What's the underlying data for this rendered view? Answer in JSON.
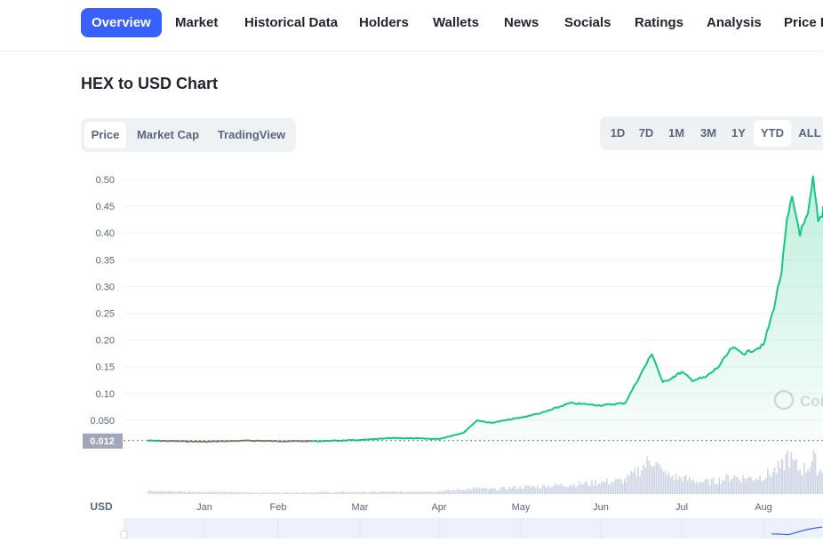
{
  "nav": {
    "items": [
      {
        "label": "Overview",
        "active": true
      },
      {
        "label": "Market"
      },
      {
        "label": "Historical Data"
      },
      {
        "label": "Holders"
      },
      {
        "label": "Wallets"
      },
      {
        "label": "News"
      },
      {
        "label": "Socials"
      },
      {
        "label": "Ratings"
      },
      {
        "label": "Analysis"
      },
      {
        "label": "Price E"
      }
    ]
  },
  "chart_title": "HEX to USD Chart",
  "chart_tabs": [
    {
      "label": "Price",
      "active": true
    },
    {
      "label": "Market Cap"
    },
    {
      "label": "TradingView"
    }
  ],
  "range_tabs": [
    {
      "label": "1D"
    },
    {
      "label": "7D"
    },
    {
      "label": "1M"
    },
    {
      "label": "3M"
    },
    {
      "label": "1Y"
    },
    {
      "label": "YTD",
      "active": true
    },
    {
      "label": "ALL"
    }
  ],
  "currency_label": "USD",
  "watermark": "Coi",
  "colors": {
    "accent": "#3861fb",
    "line_up": "#16c784",
    "line_down": "#ea3943",
    "volume": "#cfd6e4"
  },
  "chart_data": {
    "type": "area",
    "y_ticks": [
      "0.50",
      "0.45",
      "0.40",
      "0.35",
      "0.30",
      "0.25",
      "0.20",
      "0.15",
      "0.10",
      "0.050"
    ],
    "ylim": [
      0,
      0.5
    ],
    "x_ticks": [
      "Jan",
      "Feb",
      "Mar",
      "Apr",
      "May",
      "Jun",
      "Jul",
      "Aug"
    ],
    "current_price_label": "0.012",
    "current_price": 0.012,
    "series": [
      {
        "x": [
          "Dec 20",
          "Jan 1",
          "Jan 10",
          "Jan 20",
          "Feb 1",
          "Feb 15",
          "Mar 1",
          "Mar 15",
          "Apr 1",
          "Apr 10",
          "Apr 15",
          "Apr 20",
          "May 1",
          "May 10",
          "May 20",
          "Jun 1",
          "Jun 10",
          "Jun 20",
          "Jun 24",
          "Jul 1",
          "Jul 5",
          "Jul 10",
          "Jul 15",
          "Jul 20",
          "Jul 25",
          "Aug 1",
          "Aug 5",
          "Aug 8",
          "Aug 10",
          "Aug 12",
          "Aug 15",
          "Aug 18",
          "Aug 20",
          "Aug 22",
          "Aug 25"
        ],
        "values": [
          0.012,
          0.01,
          0.011,
          0.012,
          0.011,
          0.011,
          0.013,
          0.017,
          0.015,
          0.027,
          0.05,
          0.045,
          0.055,
          0.065,
          0.082,
          0.078,
          0.082,
          0.175,
          0.12,
          0.14,
          0.125,
          0.13,
          0.15,
          0.185,
          0.175,
          0.19,
          0.26,
          0.33,
          0.42,
          0.465,
          0.4,
          0.43,
          0.5,
          0.42,
          0.45
        ]
      }
    ],
    "volume": [
      0.08,
      0.06,
      0.05,
      0.04,
      0.04,
      0.05,
      0.05,
      0.06,
      0.08,
      0.12,
      0.15,
      0.12,
      0.18,
      0.2,
      0.25,
      0.3,
      0.35,
      0.9,
      0.5,
      0.4,
      0.35,
      0.3,
      0.35,
      0.45,
      0.4,
      0.45,
      0.6,
      0.7,
      1.0,
      0.8,
      0.6,
      0.7,
      0.9,
      0.6,
      0.7
    ]
  }
}
